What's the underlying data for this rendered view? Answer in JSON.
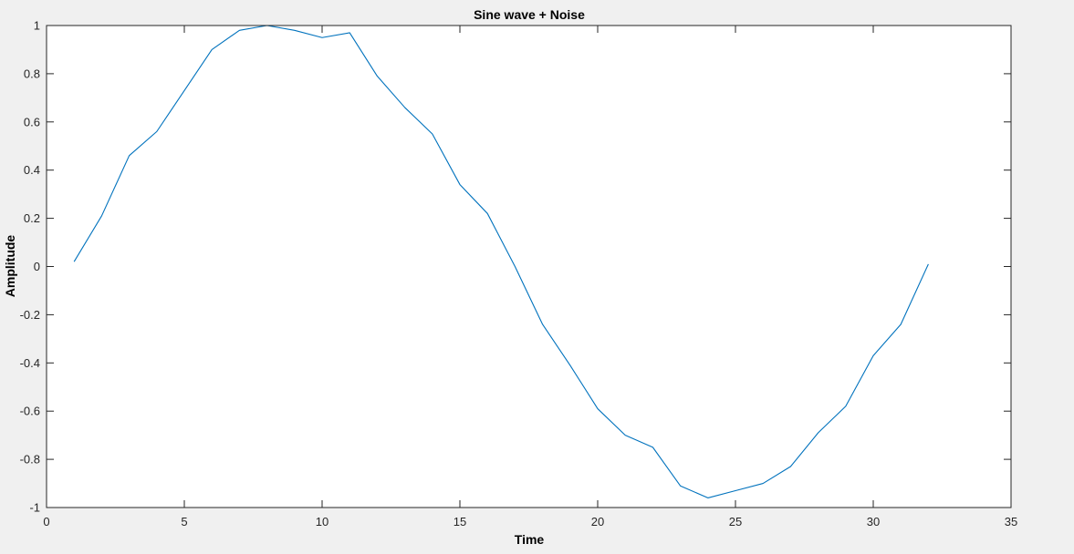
{
  "chart_data": {
    "type": "line",
    "title": "Sine wave + Noise",
    "xlabel": "Time",
    "ylabel": "Amplitude",
    "xlim": [
      0,
      35
    ],
    "ylim": [
      -1,
      1
    ],
    "xticks": [
      0,
      5,
      10,
      15,
      20,
      25,
      30,
      35
    ],
    "yticks": [
      -1,
      -0.8,
      -0.6,
      -0.4,
      -0.2,
      0,
      0.2,
      0.4,
      0.6,
      0.8,
      1
    ],
    "grid": false,
    "colors": {
      "line": "#0072bd",
      "axes": "#262626",
      "plot_background": "#ffffff",
      "figure_background": "#f0f0f0"
    },
    "series": [
      {
        "x": [
          1,
          2,
          3,
          4,
          5,
          6,
          7,
          8,
          9,
          10,
          11,
          12,
          13,
          14,
          15,
          16,
          17,
          18,
          19,
          20,
          21,
          22,
          23,
          24,
          25,
          26,
          27,
          28,
          29,
          30,
          31,
          32
        ],
        "values": [
          0.02,
          0.21,
          0.46,
          0.56,
          0.73,
          0.9,
          0.98,
          1.0,
          0.98,
          0.95,
          0.97,
          0.79,
          0.66,
          0.55,
          0.34,
          0.22,
          0.0,
          -0.24,
          -0.41,
          -0.59,
          -0.7,
          -0.75,
          -0.91,
          -0.96,
          -0.93,
          -0.9,
          -0.83,
          -0.69,
          -0.58,
          -0.37,
          -0.24,
          0.01
        ]
      }
    ]
  }
}
